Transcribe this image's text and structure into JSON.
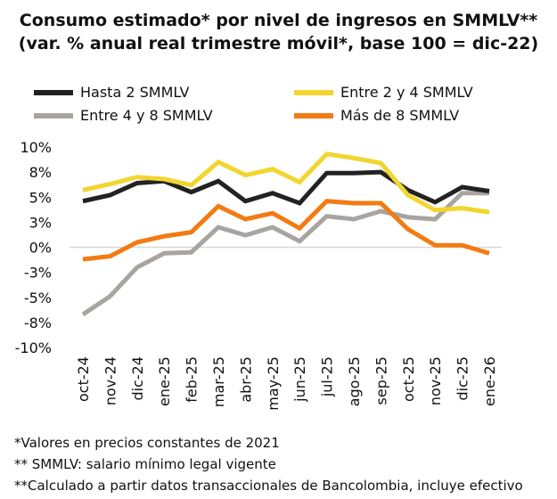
{
  "chart_data": {
    "type": "line",
    "title": "Consumo estimado* por nivel de ingresos en SMMLV**",
    "subtitle": "(var. % anual real trimestre móvil*, base 100 = dic-22)",
    "categories": [
      "oct-24",
      "nov-24",
      "dic-24",
      "ene-25",
      "feb-25",
      "mar-25",
      "abr-25",
      "may-25",
      "jun-25",
      "jul-25",
      "ago-25",
      "sep-25",
      "oct-25",
      "nov-25",
      "dic-25",
      "ene-26"
    ],
    "yticks": [
      10,
      7.5,
      5,
      2.5,
      0,
      -2.5,
      -5,
      -7.5,
      -10
    ],
    "ytick_labels": [
      "10%",
      "8%",
      "5%",
      "3%",
      "0%",
      "-3%",
      "-5%",
      "-8%",
      "-10%"
    ],
    "ylim": [
      -10,
      10
    ],
    "grid": "zero line only",
    "legend": "top",
    "series": [
      {
        "name": "Hasta 2 SMMLV",
        "color": "#222222",
        "values": [
          4.6,
          5.2,
          6.4,
          6.6,
          5.5,
          6.6,
          4.6,
          5.4,
          4.4,
          7.4,
          7.4,
          7.5,
          5.7,
          4.5,
          6.0,
          5.6
        ]
      },
      {
        "name": "Entre 2 y 4 SMMLV",
        "color": "#F2D52E",
        "values": [
          5.7,
          6.3,
          7.0,
          6.8,
          6.2,
          8.5,
          7.2,
          7.8,
          6.5,
          9.3,
          8.9,
          8.4,
          5.2,
          3.7,
          3.9,
          3.5
        ]
      },
      {
        "name": "Entre 4 y 8 SMMLV",
        "color": "#A8A5A0",
        "values": [
          -6.7,
          -4.9,
          -2.0,
          -0.6,
          -0.5,
          2.0,
          1.2,
          2.0,
          0.6,
          3.1,
          2.8,
          3.6,
          3.0,
          2.8,
          5.4,
          5.4
        ]
      },
      {
        "name": "Más de 8 SMMLV",
        "color": "#F27B13",
        "values": [
          -1.2,
          -0.9,
          0.5,
          1.1,
          1.5,
          4.1,
          2.8,
          3.4,
          1.9,
          4.6,
          4.4,
          4.4,
          1.8,
          0.2,
          0.2,
          -0.6
        ]
      }
    ]
  },
  "footnotes": [
    "*Valores en precios constantes de 2021",
    "** SMMLV: salario mínimo legal vigente",
    "**Calculado a partir datos transaccionales de Bancolombia, incluye efectivo"
  ]
}
